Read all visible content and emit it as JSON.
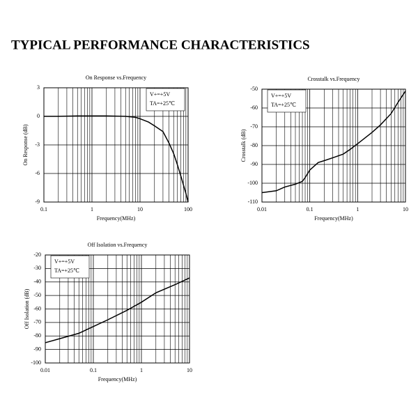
{
  "header": {
    "title": "TYPICAL PERFORMANCE CHARACTERISTICS"
  },
  "chart_data": [
    {
      "type": "line",
      "title": "On Response vs.Frequency",
      "x_label": "Frequency(MHz)",
      "y_label": "On Response (dB)",
      "x": [
        0.1,
        0.2,
        0.5,
        1,
        2,
        5,
        8,
        10,
        15,
        20,
        30,
        40,
        50,
        60,
        70,
        80,
        90,
        100
      ],
      "values": [
        0,
        0,
        0.05,
        0.05,
        0.05,
        0,
        -0.1,
        -0.25,
        -0.6,
        -1.0,
        -1.6,
        -2.8,
        -3.9,
        -5.1,
        -6.2,
        -7.2,
        -8.1,
        -9
      ],
      "color": "#000000",
      "xlog": true,
      "xlim": [
        0.1,
        100
      ],
      "xticks": [
        0.1,
        1,
        10,
        100
      ],
      "ylim": [
        -9,
        3
      ],
      "yticks": [
        -9,
        -6,
        -3,
        0,
        3
      ],
      "grid": true,
      "minor_grid": true,
      "annotations": [
        "V+=+5V",
        "TA=+25℃"
      ],
      "legend": "upper right"
    },
    {
      "type": "line",
      "title": "Crosstalk vs.Frequency",
      "x_label": "Frequency(MHz)",
      "y_label": "Crosstalk (dB)",
      "x": [
        0.01,
        0.02,
        0.03,
        0.05,
        0.07,
        0.08,
        0.1,
        0.15,
        0.2,
        0.3,
        0.5,
        0.7,
        1,
        2,
        3,
        5,
        7,
        10
      ],
      "values": [
        -105,
        -104,
        -102,
        -100.5,
        -99,
        -97,
        -93,
        -89,
        -88,
        -86.5,
        -84.5,
        -82,
        -79,
        -73,
        -69,
        -63,
        -57,
        -51
      ],
      "color": "#000000",
      "xlog": true,
      "xlim": [
        0.01,
        10
      ],
      "xticks": [
        0.01,
        0.1,
        1,
        10
      ],
      "ylim": [
        -110,
        -50
      ],
      "yticks": [
        -110,
        -100,
        -90,
        -80,
        -70,
        -60,
        -50
      ],
      "grid": true,
      "minor_grid": true,
      "annotations": [
        "V+=+5V",
        "TA=+25℃"
      ],
      "legend": "upper left"
    },
    {
      "type": "line",
      "title": "Off Isolation vs.Frequency",
      "x_label": "Frequency(MHz)",
      "y_label": "Off Isolation (dB)",
      "x": [
        0.01,
        0.02,
        0.05,
        0.1,
        0.2,
        0.5,
        1,
        2,
        5,
        10
      ],
      "values": [
        -85,
        -82,
        -78,
        -73,
        -68,
        -61,
        -55,
        -48,
        -42,
        -37
      ],
      "color": "#000000",
      "xlog": true,
      "xlim": [
        0.01,
        10
      ],
      "xticks": [
        0.01,
        0.1,
        1,
        10
      ],
      "ylim": [
        -100,
        -20
      ],
      "yticks": [
        -100,
        -90,
        -80,
        -70,
        -60,
        -50,
        -40,
        -30,
        -20
      ],
      "grid": true,
      "minor_grid": true,
      "annotations": [
        "V+=+5V",
        "TA=+25℃"
      ],
      "legend": "upper left"
    }
  ]
}
